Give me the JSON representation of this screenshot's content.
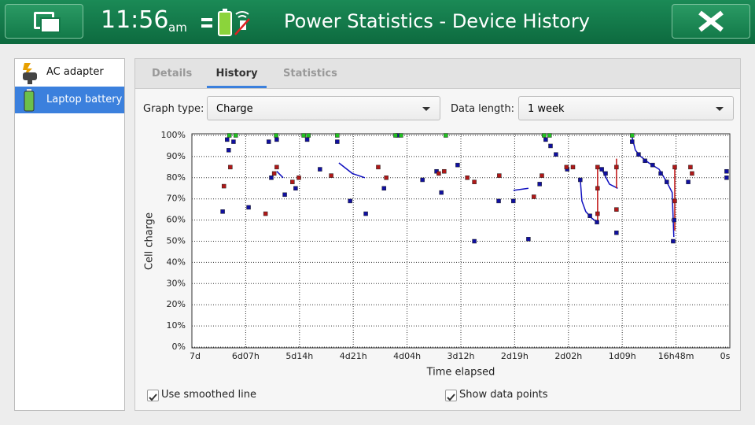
{
  "header": {
    "time": "11:56",
    "ampm": "am",
    "title": "Power Statistics - Device History"
  },
  "devices": [
    "AC adapter",
    "Laptop battery"
  ],
  "tabs": [
    "Details",
    "History",
    "Statistics"
  ],
  "controls": {
    "graph_type_label": "Graph type:",
    "graph_type": "Charge",
    "data_length_label": "Data length:",
    "data_length": "1 week",
    "checkboxes": [
      "Use smoothed line",
      "Show data points"
    ]
  },
  "chart_data": {
    "type": "scatter",
    "ylabel": "Cell charge",
    "xlabel": "Time elapsed",
    "xlim": [
      168,
      0
    ],
    "ylim": [
      0,
      100
    ],
    "xticks": [
      {
        "value": 168,
        "label": "7d"
      },
      {
        "value": 151.2,
        "label": "6d07h"
      },
      {
        "value": 134.4,
        "label": "5d14h"
      },
      {
        "value": 117.6,
        "label": "4d21h"
      },
      {
        "value": 100.8,
        "label": "4d04h"
      },
      {
        "value": 84,
        "label": "3d12h"
      },
      {
        "value": 67.2,
        "label": "2d19h"
      },
      {
        "value": 50.4,
        "label": "2d02h"
      },
      {
        "value": 33.6,
        "label": "1d09h"
      },
      {
        "value": 16.8,
        "label": "16h48m"
      },
      {
        "value": 0,
        "label": "0s"
      }
    ],
    "yticks": [
      {
        "value": 0,
        "label": "0%"
      },
      {
        "value": 10,
        "label": "10%"
      },
      {
        "value": 20,
        "label": "20%"
      },
      {
        "value": 30,
        "label": "30%"
      },
      {
        "value": 40,
        "label": "40%"
      },
      {
        "value": 50,
        "label": "50%"
      },
      {
        "value": 60,
        "label": "60%"
      },
      {
        "value": 70,
        "label": "70%"
      },
      {
        "value": 80,
        "label": "80%"
      },
      {
        "value": 90,
        "label": "90%"
      },
      {
        "value": 100,
        "label": "100%"
      }
    ],
    "grid": true,
    "series": [
      {
        "style": "line",
        "color": "#1010c0",
        "x": [
          141.5,
          139.5,
          null,
          122.1,
          117.9,
          114,
          null,
          67.6,
          62.9,
          null,
          46.7,
          46.2,
          45,
          43.2,
          41.5,
          null,
          40,
          37.6,
          35,
          null,
          30.5,
          29.5,
          27.8,
          25.3,
          22.1,
          19.7,
          18,
          17.5
        ],
        "values": [
          83,
          80,
          null,
          87,
          82,
          80,
          null,
          74,
          75,
          null,
          79,
          69,
          64,
          61,
          59,
          null,
          84,
          77,
          75,
          null,
          99,
          93,
          90,
          87,
          84,
          78,
          73,
          52
        ]
      },
      {
        "style": "line",
        "color": "#c01010",
        "x": [
          41.3,
          41.3,
          null,
          35.4,
          35.4,
          null,
          17.2,
          17.2
        ],
        "values": [
          85,
          60,
          null,
          89,
          75,
          null,
          85,
          55
        ]
      },
      {
        "style": "points",
        "color": "#1010a0",
        "x": [
          158.4,
          157,
          156.5,
          155,
          150.3,
          144,
          143.2,
          141.5,
          139,
          135.6,
          132,
          128,
          122.6,
          118.6,
          113.7,
          108,
          103.7,
          96,
          91.6,
          90.1,
          85,
          79.8,
          72.2,
          67.6,
          62.9,
          59.4,
          57.5,
          56,
          54.3,
          50.8,
          46.7,
          43.7,
          41.5,
          40,
          38.8,
          35.4,
          30.5,
          28.5,
          26.5,
          24.1,
          21.6,
          19.7,
          17.7,
          17.4,
          13,
          1,
          1
        ],
        "values": [
          64,
          98,
          93,
          97,
          66,
          97,
          80,
          98,
          72,
          75,
          98,
          84,
          97,
          69,
          63,
          75,
          100,
          79,
          83,
          73,
          86,
          50,
          69,
          69,
          51,
          77,
          98,
          95,
          91,
          84,
          79,
          62,
          59,
          84,
          82,
          54,
          97,
          91,
          88,
          86,
          82,
          78,
          50,
          60,
          78,
          83,
          80
        ]
      },
      {
        "style": "points",
        "color": "#b01818",
        "x": [
          158,
          156,
          145,
          142.3,
          141.5,
          136.6,
          134.6,
          124.5,
          109.8,
          107.3,
          90.9,
          89.2,
          82,
          79.8,
          72,
          61.2,
          58.7,
          51,
          49,
          41.3,
          41.3,
          41.3,
          35.4,
          35.4,
          17.2,
          17.2,
          12.3,
          11.8
        ],
        "values": [
          76,
          85,
          63,
          82,
          85,
          78,
          80,
          81,
          85,
          80,
          82,
          83,
          80,
          78,
          81,
          71,
          81,
          85,
          85,
          85,
          75,
          63,
          65,
          85,
          85,
          69,
          85,
          82
        ]
      },
      {
        "style": "points",
        "color": "#20c020",
        "x": [
          156.3,
          154.3,
          141.7,
          133.1,
          131.6,
          122.6,
          104.4,
          102.7,
          88.7,
          58,
          56.3,
          30.5
        ],
        "values": [
          100,
          100,
          100,
          100,
          100,
          100,
          100,
          100,
          100,
          100,
          100,
          100
        ]
      }
    ]
  }
}
